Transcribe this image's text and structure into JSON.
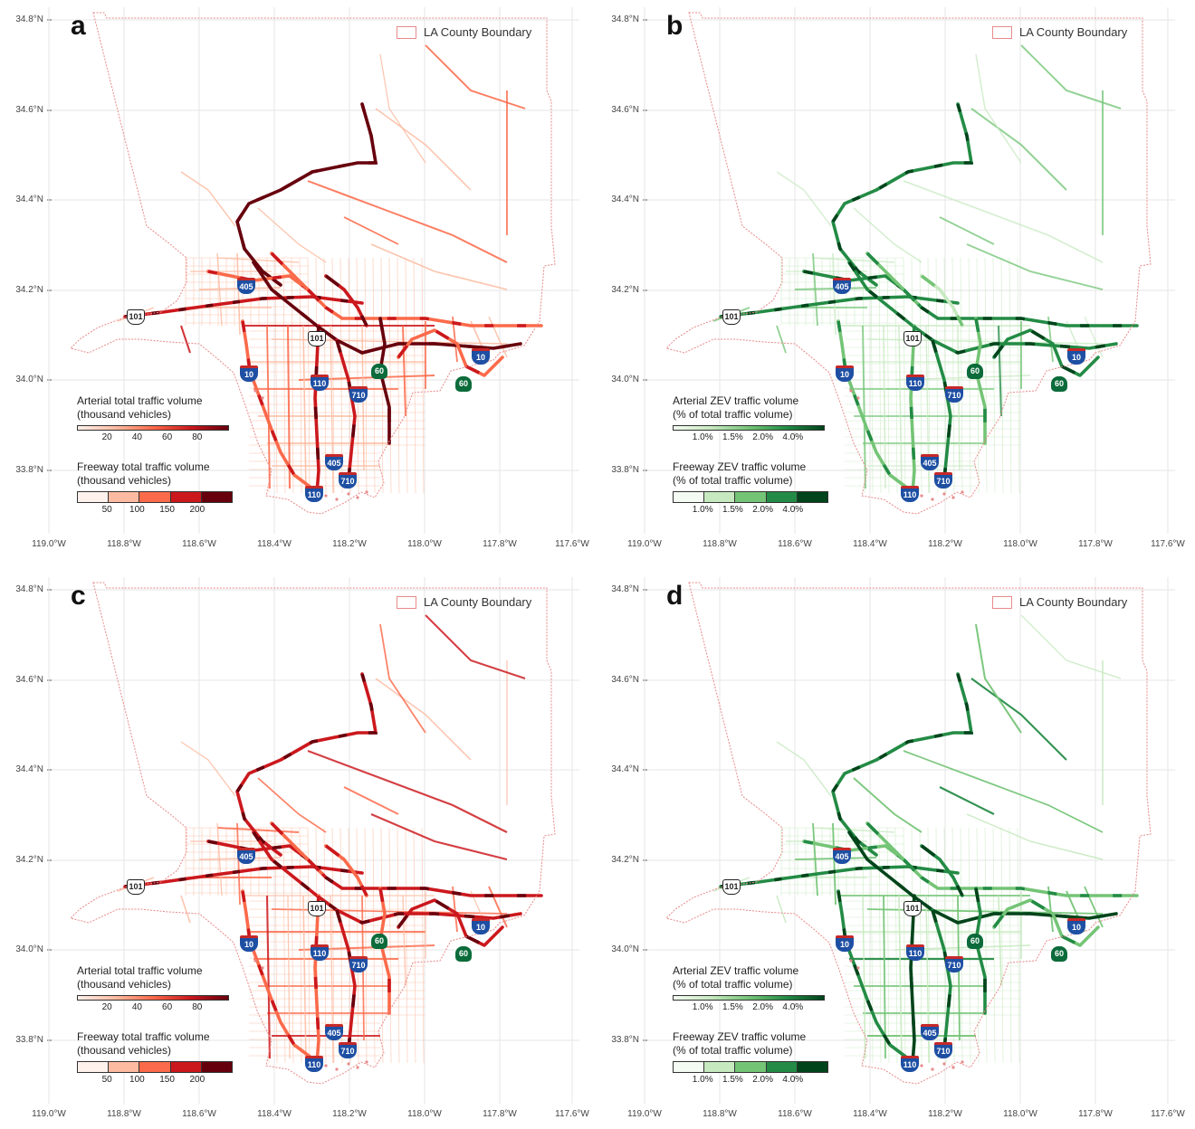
{
  "boundary_legend": "LA County Boundary",
  "lat_labels": [
    "34.8°N",
    "34.6°N",
    "34.4°N",
    "34.2°N",
    "34.0°N",
    "33.8°N"
  ],
  "lon_labels": [
    "119.0°W",
    "118.8°W",
    "118.6°W",
    "118.4°W",
    "118.2°W",
    "118.0°W",
    "117.8°W",
    "117.6°W"
  ],
  "shields": {
    "i405": "405",
    "i10": "10",
    "i110": "110",
    "i710": "710",
    "ca60": "60",
    "us101": "101"
  },
  "colors": {
    "boundary": "#e88a8a",
    "reds": [
      "#fff1ec",
      "#fcbba1",
      "#fb6a4a",
      "#cb181d",
      "#67000d"
    ],
    "greens": [
      "#f4fbf2",
      "#c7e9c0",
      "#74c476",
      "#238b45",
      "#00441b"
    ],
    "grid": "#e6e6e6"
  },
  "panels": [
    {
      "label": "a",
      "theme": "red",
      "arterial_title_1": "Arterial total traffic volume",
      "arterial_title_2": "(thousand vehicles)",
      "arterial_ticks": [
        "20",
        "40",
        "60",
        "80"
      ],
      "freeway_title_1": "Freeway total traffic volume",
      "freeway_title_2": "(thousand vehicles)",
      "freeway_ticks": [
        "50",
        "100",
        "150",
        "200"
      ],
      "intensity": 0.8
    },
    {
      "label": "b",
      "theme": "green",
      "arterial_title_1": "Arterial ZEV traffic volume",
      "arterial_title_2": "(% of total traffic volume)",
      "arterial_ticks": [
        "1.0%",
        "1.5%",
        "2.0%",
        "4.0%"
      ],
      "freeway_title_1": "Freeway ZEV traffic volume",
      "freeway_title_2": "(% of total traffic volume)",
      "freeway_ticks": [
        "1.0%",
        "1.5%",
        "2.0%",
        "4.0%"
      ],
      "intensity": 0.55
    },
    {
      "label": "c",
      "theme": "red",
      "arterial_title_1": "Arterial total traffic volume",
      "arterial_title_2": "(thousand vehicles)",
      "arterial_ticks": [
        "20",
        "40",
        "60",
        "80"
      ],
      "freeway_title_1": "Freeway total traffic volume",
      "freeway_title_2": "(thousand vehicles)",
      "freeway_ticks": [
        "50",
        "100",
        "150",
        "200"
      ],
      "intensity": 0.7
    },
    {
      "label": "d",
      "theme": "green",
      "arterial_title_1": "Arterial ZEV traffic volume",
      "arterial_title_2": "(% of total traffic volume)",
      "arterial_ticks": [
        "1.0%",
        "1.5%",
        "2.0%",
        "4.0%"
      ],
      "freeway_title_1": "Freeway ZEV traffic volume",
      "freeway_title_2": "(% of total traffic volume)",
      "freeway_ticks": [
        "1.0%",
        "1.5%",
        "2.0%",
        "4.0%"
      ],
      "intensity": 0.95
    }
  ]
}
